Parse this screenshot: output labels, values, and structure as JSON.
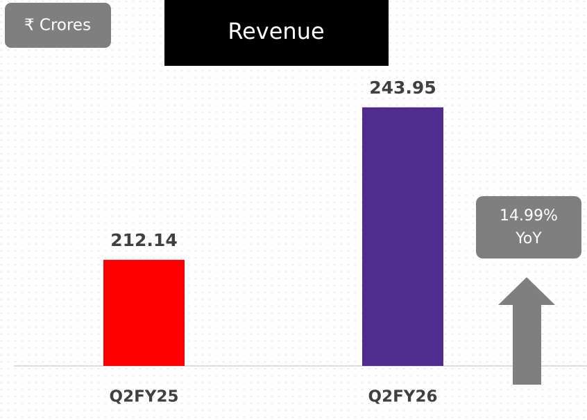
{
  "chart_data": {
    "type": "bar",
    "title": "Revenue",
    "unit": "₹ Crores",
    "categories": [
      "Q2FY25",
      "Q2FY26"
    ],
    "values": [
      212.14,
      243.95
    ],
    "colors": [
      "#ff0000",
      "#4f2d8f"
    ],
    "ylim": [
      190,
      250
    ],
    "annotation": {
      "change": "14.99%",
      "label": "YoY"
    }
  }
}
